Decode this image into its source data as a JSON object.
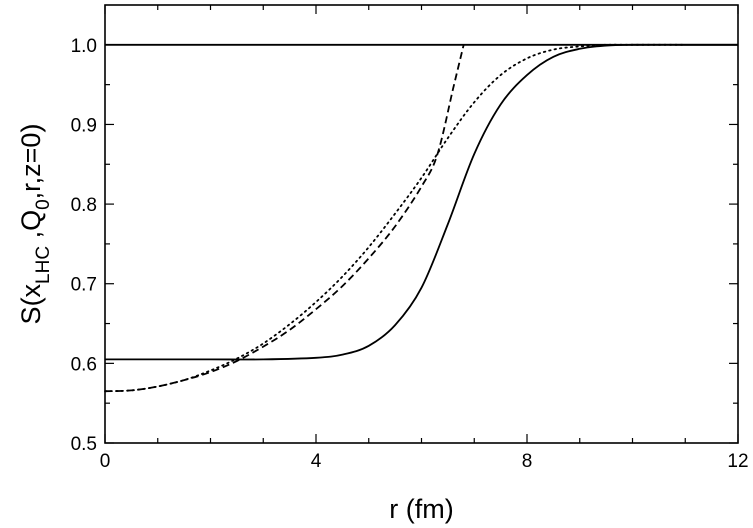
{
  "chart_data": {
    "type": "line",
    "title": "",
    "xlabel": "r (fm)",
    "ylabel": "S(x_LHC , Q_0 ,r,z=0)",
    "ylabel_parts": {
      "base": "S(x",
      "sub1": "LHC",
      "mid": " ,Q",
      "sub2": "0",
      "tail": ",r,z=0)"
    },
    "xlim": [
      0,
      12
    ],
    "ylim": [
      0.5,
      1.05
    ],
    "xticks_major": [
      0,
      4,
      8,
      12
    ],
    "xtick_labels": [
      "0",
      "4",
      "8",
      "12"
    ],
    "xticks_minor": [
      1,
      2,
      3,
      5,
      6,
      7,
      9,
      10,
      11
    ],
    "yticks_major": [
      0.5,
      0.6,
      0.7,
      0.8,
      0.9,
      1.0
    ],
    "ytick_labels": [
      "0.5",
      "0.6",
      "0.7",
      "0.8",
      "0.9",
      "1.0"
    ],
    "yticks_minor": [
      0.55,
      0.65,
      0.75,
      0.85,
      0.95
    ],
    "grid": false,
    "legend": "none",
    "reference_line": {
      "y": 1.0,
      "style": "solid"
    },
    "series": [
      {
        "style": "solid",
        "x": [
          0,
          1,
          2,
          3,
          4,
          4.5,
          5,
          5.5,
          6,
          6.5,
          7,
          7.5,
          8,
          8.5,
          9,
          9.5,
          10,
          11,
          12
        ],
        "y": [
          0.605,
          0.605,
          0.605,
          0.605,
          0.607,
          0.611,
          0.622,
          0.648,
          0.695,
          0.775,
          0.863,
          0.925,
          0.962,
          0.985,
          0.995,
          0.999,
          1.0,
          1.0,
          1.0
        ]
      },
      {
        "style": "dashed",
        "x": [
          0,
          0.5,
          1,
          1.5,
          2,
          2.5,
          3,
          3.5,
          4,
          4.5,
          5,
          5.5,
          6,
          6.3,
          6.6,
          6.8
        ],
        "y": [
          0.565,
          0.566,
          0.571,
          0.579,
          0.589,
          0.603,
          0.621,
          0.642,
          0.668,
          0.697,
          0.732,
          0.772,
          0.822,
          0.862,
          0.945,
          1.0
        ]
      },
      {
        "style": "dotted",
        "x": [
          0,
          0.5,
          1,
          1.5,
          2,
          2.5,
          3,
          3.5,
          4,
          4.5,
          5,
          5.5,
          6,
          6.5,
          7,
          7.5,
          8,
          8.5,
          9,
          9.5,
          10,
          11
        ],
        "y": [
          0.565,
          0.566,
          0.571,
          0.579,
          0.591,
          0.606,
          0.625,
          0.649,
          0.677,
          0.709,
          0.746,
          0.788,
          0.833,
          0.883,
          0.928,
          0.962,
          0.983,
          0.994,
          0.998,
          1.0,
          1.0,
          1.0
        ]
      }
    ]
  }
}
